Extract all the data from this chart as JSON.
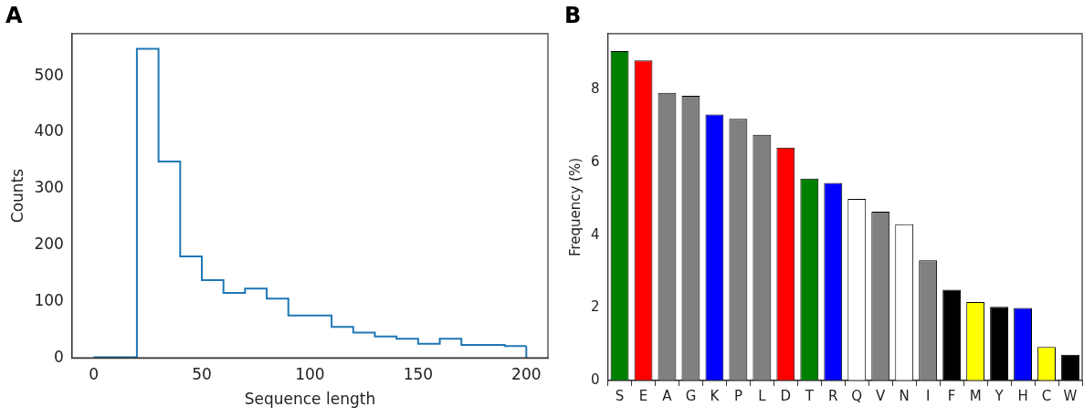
{
  "chart_data": [
    {
      "type": "histogram",
      "title": "A",
      "xlabel": "Sequence length",
      "ylabel": "Counts",
      "bins": [
        0,
        10,
        20,
        30,
        40,
        50,
        60,
        70,
        80,
        90,
        100,
        110,
        120,
        130,
        140,
        150,
        160,
        170,
        180,
        190,
        200
      ],
      "values": [
        1,
        1,
        548,
        348,
        180,
        138,
        115,
        123,
        105,
        75,
        75,
        55,
        45,
        38,
        34,
        25,
        34,
        23,
        23,
        21
      ],
      "color": "#1f77b4",
      "xlim": [
        -10,
        210
      ],
      "xticks": [
        0,
        50,
        100,
        150,
        200
      ],
      "ylim": [
        0,
        575
      ],
      "yticks": [
        0,
        100,
        200,
        300,
        400,
        500
      ],
      "grid": false,
      "legend": false
    },
    {
      "type": "bar",
      "title": "B",
      "ylabel": "Frequency (%)",
      "categories": [
        "S",
        "E",
        "A",
        "G",
        "K",
        "P",
        "L",
        "D",
        "T",
        "R",
        "Q",
        "V",
        "N",
        "I",
        "F",
        "M",
        "Y",
        "H",
        "C",
        "W"
      ],
      "values": [
        9.07,
        8.81,
        7.92,
        7.84,
        7.32,
        7.2,
        6.76,
        6.41,
        5.56,
        5.44,
        5.0,
        4.65,
        4.3,
        3.31,
        2.5,
        2.16,
        2.03,
        2.0,
        0.92,
        0.71
      ],
      "colors": [
        "#008000",
        "#ff0000",
        "#808080",
        "#808080",
        "#0000ff",
        "#808080",
        "#808080",
        "#ff0000",
        "#008000",
        "#0000ff",
        "#ffffff",
        "#808080",
        "#ffffff",
        "#808080",
        "#000000",
        "#ffff00",
        "#000000",
        "#0000ff",
        "#ffff00",
        "#000000"
      ],
      "ylim": [
        0,
        9.55
      ],
      "yticks": [
        0,
        2,
        4,
        6,
        8
      ],
      "grid": false,
      "legend": false
    }
  ]
}
